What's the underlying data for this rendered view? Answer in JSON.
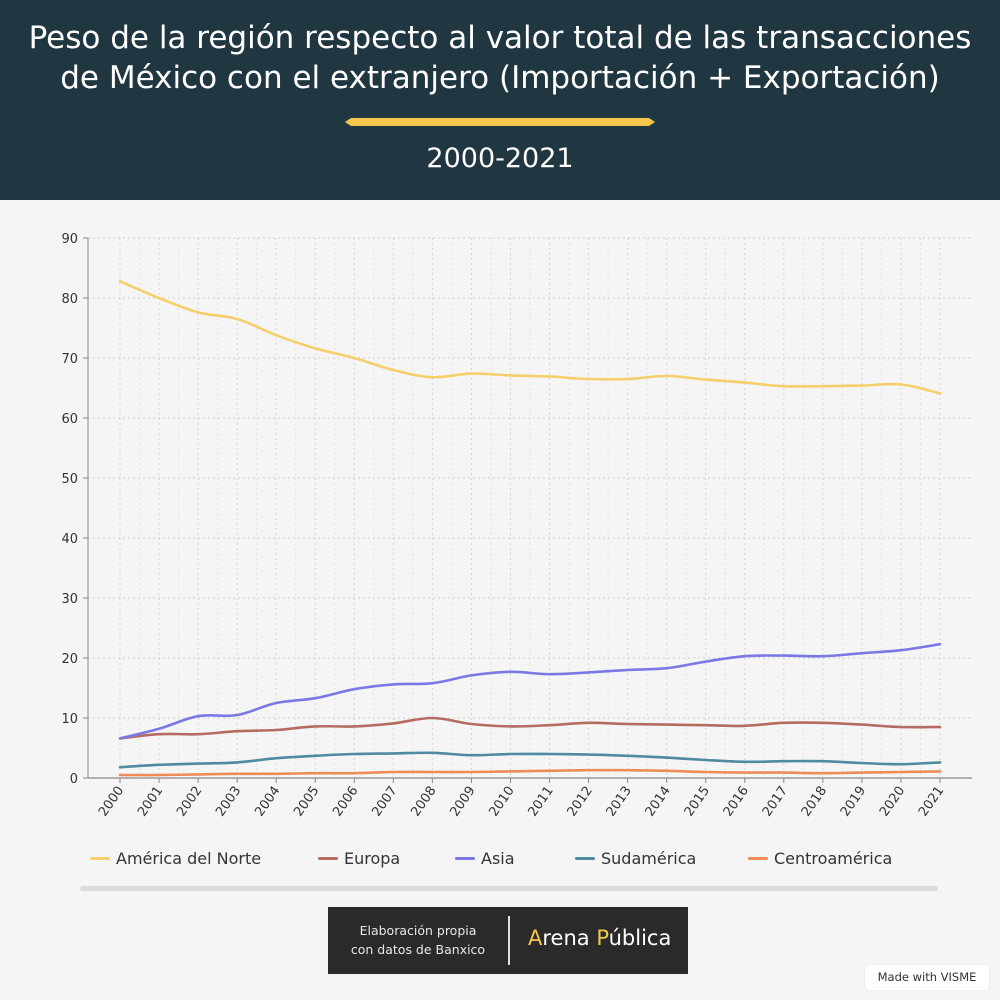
{
  "header": {
    "title": "Peso de la región respecto al valor total de las transacciones de México con el extranjero (Importación + Exportación)",
    "subtitle": "2000-2021"
  },
  "colors": {
    "header_bg": "#203641",
    "accent": "#f5c84c",
    "america_del_norte": "#f5cf6b",
    "europa": "#b56b60",
    "asia": "#7b78e6",
    "sudamerica": "#4e8aa0",
    "centroamerica": "#ef8c56"
  },
  "chart_data": {
    "type": "line",
    "title": "",
    "xlabel": "",
    "ylabel": "",
    "ylim": [
      0,
      90
    ],
    "yticks": [
      0,
      10,
      20,
      30,
      40,
      50,
      60,
      70,
      80,
      90
    ],
    "grid": true,
    "legend_position": "bottom",
    "categories": [
      "2000",
      "2001",
      "2002",
      "2003",
      "2004",
      "2005",
      "2006",
      "2007",
      "2008",
      "2009",
      "2010",
      "2011",
      "2012",
      "2013",
      "2014",
      "2015",
      "2016",
      "2017",
      "2018",
      "2019",
      "2020",
      "2021"
    ],
    "series": [
      {
        "name": "América del Norte",
        "color": "#f5cf6b",
        "values": [
          82.8,
          80.0,
          77.6,
          76.5,
          73.8,
          71.6,
          70.0,
          68.0,
          66.8,
          67.4,
          67.1,
          66.9,
          66.5,
          66.5,
          67.0,
          66.4,
          65.9,
          65.3,
          65.3,
          65.4,
          65.6,
          64.1
        ]
      },
      {
        "name": "Europa",
        "color": "#b56b60",
        "values": [
          6.6,
          7.3,
          7.3,
          7.8,
          8.0,
          8.6,
          8.6,
          9.1,
          10.0,
          9.0,
          8.6,
          8.8,
          9.2,
          9.0,
          8.9,
          8.8,
          8.7,
          9.2,
          9.2,
          8.9,
          8.5,
          8.5
        ]
      },
      {
        "name": "Asia",
        "color": "#7b78e6",
        "values": [
          6.6,
          8.2,
          10.3,
          10.5,
          12.5,
          13.3,
          14.8,
          15.6,
          15.8,
          17.1,
          17.7,
          17.3,
          17.6,
          18.0,
          18.3,
          19.4,
          20.3,
          20.4,
          20.3,
          20.8,
          21.3,
          22.3
        ]
      },
      {
        "name": "Sudamérica",
        "color": "#4e8aa0",
        "values": [
          1.8,
          2.2,
          2.4,
          2.6,
          3.3,
          3.7,
          4.0,
          4.1,
          4.2,
          3.8,
          4.0,
          4.0,
          3.9,
          3.7,
          3.4,
          3.0,
          2.7,
          2.8,
          2.8,
          2.5,
          2.3,
          2.6
        ]
      },
      {
        "name": "Centroamérica",
        "color": "#ef8c56",
        "values": [
          0.5,
          0.5,
          0.6,
          0.7,
          0.7,
          0.8,
          0.8,
          1.0,
          1.0,
          1.0,
          1.1,
          1.2,
          1.3,
          1.3,
          1.2,
          1.0,
          0.9,
          0.9,
          0.8,
          0.9,
          1.0,
          1.1
        ]
      }
    ]
  },
  "credit": {
    "line1": "Elaboración propia",
    "line2": "con datos de Banxico",
    "brand_a": "A",
    "brand_rena": "rena ",
    "brand_p": "P",
    "brand_ublica": "ública"
  },
  "watermark": "Made with VISME"
}
